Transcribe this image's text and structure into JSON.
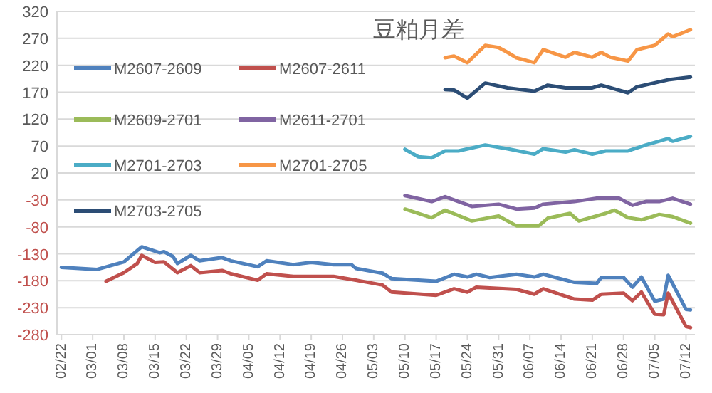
{
  "chart_data": {
    "type": "line",
    "title": "豆粕月差",
    "legend": "top left",
    "grid": "y",
    "xlim": [
      "--02-21",
      "--07-14"
    ],
    "ylim": [
      -280,
      320
    ],
    "yticks": [
      -280,
      -230,
      -180,
      -130,
      -80,
      -30,
      20,
      70,
      120,
      170,
      220,
      270,
      320
    ],
    "xticks": [
      {
        "value": "--02-22",
        "label": "02/22"
      },
      {
        "value": "--03-01",
        "label": "03/01"
      },
      {
        "value": "--03-08",
        "label": "03/08"
      },
      {
        "value": "--03-15",
        "label": "03/15"
      },
      {
        "value": "--03-22",
        "label": "03/22"
      },
      {
        "value": "--03-29",
        "label": "03/29"
      },
      {
        "value": "--04-05",
        "label": "04/05"
      },
      {
        "value": "--04-12",
        "label": "04/12"
      },
      {
        "value": "--04-19",
        "label": "04/19"
      },
      {
        "value": "--04-26",
        "label": "04/26"
      },
      {
        "value": "--05-03",
        "label": "05/03"
      },
      {
        "value": "--05-10",
        "label": "05/10"
      },
      {
        "value": "--05-17",
        "label": "05/17"
      },
      {
        "value": "--05-24",
        "label": "05/24"
      },
      {
        "value": "--05-31",
        "label": "05/31"
      },
      {
        "value": "--06-07",
        "label": "06/07"
      },
      {
        "value": "--06-14",
        "label": "06/14"
      },
      {
        "value": "--06-21",
        "label": "06/21"
      },
      {
        "value": "--06-28",
        "label": "06/28"
      },
      {
        "value": "--07-05",
        "label": "07/05"
      },
      {
        "value": "--07-12",
        "label": "07/12"
      }
    ],
    "series": [
      {
        "name": "M2607-2609",
        "color": "#4f81bd",
        "x": [
          "--02-22",
          "--03-02",
          "--03-05",
          "--03-08",
          "--03-12",
          "--03-16",
          "--03-17",
          "--03-19",
          "--03-20",
          "--03-23",
          "--03-25",
          "--03-30",
          "--04-01",
          "--04-07",
          "--04-09",
          "--04-15",
          "--04-19",
          "--04-24",
          "--04-28",
          "--04-29",
          "--05-05",
          "--05-07",
          "--05-17",
          "--05-21",
          "--05-24",
          "--05-26",
          "--05-29",
          "--06-04",
          "--06-08",
          "--06-10",
          "--06-17",
          "--06-22",
          "--06-23",
          "--06-28",
          "--06-30",
          "--07-02",
          "--07-05",
          "--07-07",
          "--07-08",
          "--07-12",
          "--07-13"
        ],
        "values": [
          -155,
          -159,
          -152,
          -145,
          -117,
          -128,
          -126,
          -135,
          -148,
          -133,
          -143,
          -137,
          -143,
          -154,
          -143,
          -150,
          -146,
          -150,
          -150,
          -157,
          -166,
          -176,
          -181,
          -168,
          -173,
          -168,
          -174,
          -168,
          -173,
          -168,
          -183,
          -185,
          -174,
          -174,
          -192,
          -173,
          -218,
          -214,
          -170,
          -233,
          -234
        ]
      },
      {
        "name": "M2607-2611",
        "color": "#c0504d",
        "x": [
          "--03-04",
          "--03-08",
          "--03-11",
          "--03-12",
          "--03-15",
          "--03-17",
          "--03-20",
          "--03-23",
          "--03-25",
          "--03-30",
          "--04-01",
          "--04-07",
          "--04-09",
          "--04-15",
          "--04-24",
          "--04-29",
          "--05-05",
          "--05-07",
          "--05-17",
          "--05-21",
          "--05-24",
          "--05-26",
          "--06-04",
          "--06-08",
          "--06-10",
          "--06-17",
          "--06-21",
          "--06-23",
          "--06-28",
          "--06-30",
          "--07-02",
          "--07-05",
          "--07-07",
          "--07-08",
          "--07-12",
          "--07-13"
        ],
        "values": [
          -181,
          -165,
          -148,
          -133,
          -146,
          -145,
          -165,
          -152,
          -165,
          -161,
          -167,
          -179,
          -167,
          -172,
          -172,
          -179,
          -188,
          -201,
          -207,
          -195,
          -201,
          -192,
          -196,
          -205,
          -195,
          -214,
          -216,
          -205,
          -203,
          -217,
          -201,
          -242,
          -243,
          -203,
          -265,
          -267
        ]
      },
      {
        "name": "M2609-2701",
        "color": "#9bbb59",
        "x": [
          "--05-10",
          "--05-16",
          "--05-19",
          "--05-25",
          "--05-31",
          "--06-04",
          "--06-09",
          "--06-11",
          "--06-16",
          "--06-18",
          "--06-24",
          "--06-26",
          "--06-29",
          "--07-02",
          "--07-06",
          "--07-09",
          "--07-13"
        ],
        "values": [
          -47,
          -63,
          -49,
          -69,
          -60,
          -78,
          -78,
          -64,
          -55,
          -69,
          -55,
          -49,
          -63,
          -67,
          -57,
          -61,
          -73
        ]
      },
      {
        "name": "M2611-2701",
        "color": "#8064a2",
        "x": [
          "--05-10",
          "--05-16",
          "--05-19",
          "--05-25",
          "--05-31",
          "--06-04",
          "--06-08",
          "--06-10",
          "--06-17",
          "--06-22",
          "--06-27",
          "--06-30",
          "--07-03",
          "--07-06",
          "--07-09",
          "--07-13"
        ],
        "values": [
          -22,
          -33,
          -24,
          -42,
          -38,
          -47,
          -45,
          -38,
          -33,
          -27,
          -27,
          -40,
          -33,
          -33,
          -27,
          -38
        ]
      },
      {
        "name": "M2701-2703",
        "color": "#4bacc6",
        "x": [
          "--05-10",
          "--05-13",
          "--05-16",
          "--05-19",
          "--05-22",
          "--05-28",
          "--06-02",
          "--06-08",
          "--06-10",
          "--06-15",
          "--06-17",
          "--06-21",
          "--06-24",
          "--06-29",
          "--07-03",
          "--07-08",
          "--07-09",
          "--07-13"
        ],
        "values": [
          64,
          50,
          48,
          61,
          61,
          72,
          65,
          55,
          65,
          59,
          63,
          55,
          61,
          61,
          72,
          84,
          79,
          88
        ]
      },
      {
        "name": "M2701-2705",
        "color": "#f79646",
        "x": [
          "--05-19",
          "--05-21",
          "--05-24",
          "--05-28",
          "--05-31",
          "--06-02",
          "--06-04",
          "--06-08",
          "--06-10",
          "--06-15",
          "--06-17",
          "--06-21",
          "--06-23",
          "--06-25",
          "--06-29",
          "--07-01",
          "--07-05",
          "--07-08",
          "--07-09",
          "--07-13"
        ],
        "values": [
          234,
          237,
          225,
          257,
          253,
          244,
          234,
          225,
          249,
          235,
          244,
          235,
          244,
          235,
          228,
          249,
          257,
          278,
          273,
          286
        ]
      },
      {
        "name": "M2703-2705",
        "color": "#2c4d75",
        "x": [
          "--05-19",
          "--05-21",
          "--05-24",
          "--05-28",
          "--06-02",
          "--06-08",
          "--06-11",
          "--06-15",
          "--06-21",
          "--06-23",
          "--06-29",
          "--07-01",
          "--07-08",
          "--07-13"
        ],
        "values": [
          175,
          174,
          159,
          187,
          178,
          172,
          183,
          178,
          178,
          183,
          169,
          180,
          193,
          198
        ]
      }
    ]
  }
}
